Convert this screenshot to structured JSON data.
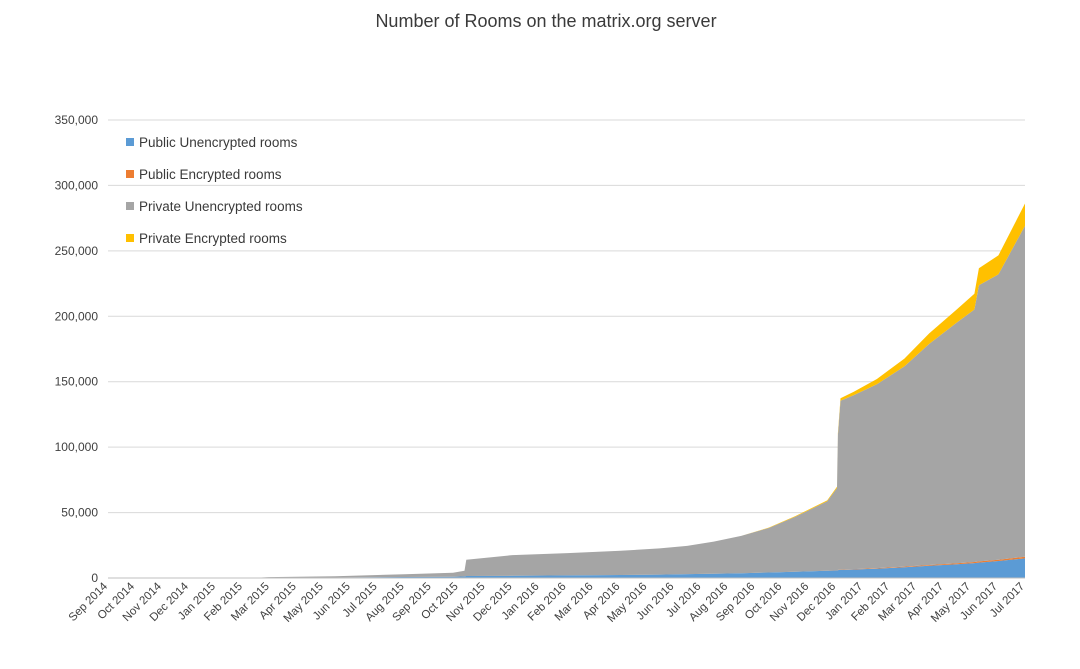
{
  "chart_data": {
    "type": "area",
    "stacked": true,
    "title": "Number of Rooms on the matrix.org server",
    "xlabel": "",
    "ylabel": "",
    "ylim": [
      0,
      350000
    ],
    "yticks": [
      0,
      50000,
      100000,
      150000,
      200000,
      250000,
      300000,
      350000
    ],
    "ytick_labels": [
      "0",
      "50,000",
      "100,000",
      "150,000",
      "200,000",
      "250,000",
      "300,000",
      "350,000"
    ],
    "xtick_labels": [
      "Sep 2014",
      "Oct 2014",
      "Nov 2014",
      "Dec 2014",
      "Jan 2015",
      "Feb 2015",
      "Mar 2015",
      "Apr 2015",
      "May 2015",
      "Jun 2015",
      "Jul 2015",
      "Aug 2015",
      "Sep 2015",
      "Oct 2015",
      "Nov 2015",
      "Dec 2015",
      "Jan 2016",
      "Feb 2016",
      "Mar 2016",
      "Apr 2016",
      "May 2016",
      "Jun 2016",
      "Jul 2016",
      "Aug 2016",
      "Sep 2016",
      "Oct 2016",
      "Nov 2016",
      "Dec 2016",
      "Jan 2017",
      "Feb 2017",
      "Mar 2017",
      "Apr 2017",
      "May 2017",
      "Jun 2017",
      "Jul 2017"
    ],
    "grid": true,
    "legend_position": "top-left",
    "x": [
      "2014-09-01",
      "2015-02-10",
      "2015-03-01",
      "2015-05-15",
      "2015-08-01",
      "2015-09-25",
      "2015-10-08",
      "2015-10-10",
      "2015-12-01",
      "2016-02-01",
      "2016-04-01",
      "2016-05-15",
      "2016-06-15",
      "2016-07-15",
      "2016-08-15",
      "2016-09-15",
      "2016-10-15",
      "2016-11-20",
      "2016-12-01",
      "2016-12-02",
      "2016-12-05",
      "2016-12-20",
      "2017-01-15",
      "2017-02-15",
      "2017-03-15",
      "2017-04-15",
      "2017-05-05",
      "2017-05-10",
      "2017-06-01",
      "2017-07-01"
    ],
    "series": [
      {
        "name": "Public Unencrypted rooms",
        "color": "#5b9bd5",
        "values": [
          0,
          0,
          200,
          400,
          800,
          1000,
          1200,
          1500,
          1700,
          2000,
          2300,
          2600,
          3000,
          3300,
          3700,
          4200,
          4800,
          5500,
          5700,
          6000,
          6200,
          6500,
          7200,
          8200,
          9300,
          10500,
          11400,
          11800,
          13000,
          15000
        ]
      },
      {
        "name": "Public Encrypted rooms",
        "color": "#ed7d31",
        "values": [
          0,
          0,
          0,
          0,
          0,
          0,
          0,
          0,
          0,
          0,
          0,
          0,
          0,
          0,
          0,
          0,
          0,
          100,
          100,
          200,
          200,
          300,
          400,
          500,
          600,
          700,
          800,
          900,
          1000,
          1200
        ]
      },
      {
        "name": "Private Unencrypted rooms",
        "color": "#a5a5a5",
        "values": [
          0,
          0,
          500,
          1000,
          2000,
          3000,
          4300,
          12500,
          15800,
          17000,
          18500,
          20000,
          21500,
          24500,
          28500,
          34000,
          42000,
          53000,
          63000,
          103000,
          129000,
          133000,
          140500,
          153000,
          169000,
          184000,
          193000,
          211000,
          218000,
          253000
        ]
      },
      {
        "name": "Private Encrypted rooms",
        "color": "#ffc000",
        "values": [
          0,
          0,
          0,
          0,
          0,
          0,
          0,
          0,
          0,
          0,
          0,
          0,
          0,
          0,
          0,
          300,
          500,
          700,
          900,
          1500,
          2000,
          2500,
          4000,
          6000,
          8000,
          10000,
          12000,
          13000,
          14500,
          17000
        ]
      }
    ]
  }
}
